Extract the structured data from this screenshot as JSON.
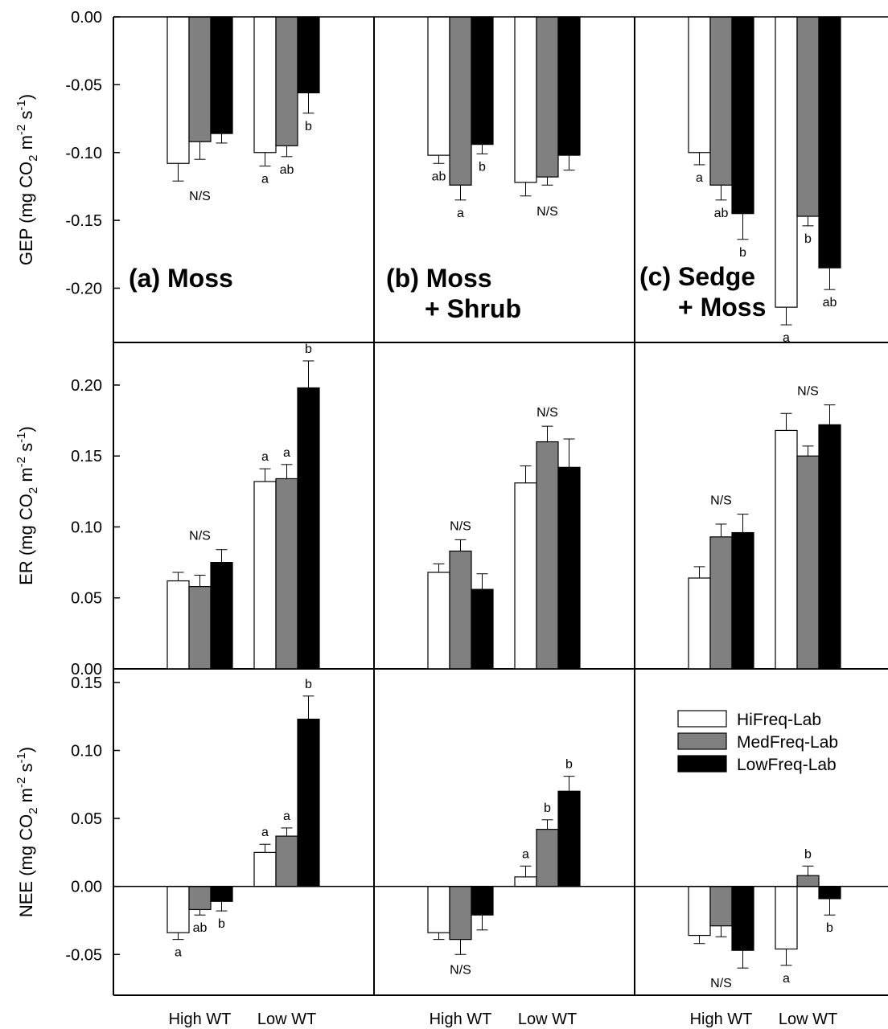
{
  "chart_data": {
    "type": "bar",
    "categories": [
      "High WT",
      "Low WT"
    ],
    "series_names": [
      "HiFreq-Lab",
      "MedFreq-Lab",
      "LowFreq-Lab"
    ],
    "colors": {
      "HiFreq-Lab": "#ffffff",
      "MedFreq-Lab": "#808080",
      "LowFreq-Lab": "#000000"
    },
    "panel_titles": [
      "(a) Moss",
      "(b) Moss\n+ Shrub",
      "(c) Sedge\n+ Moss"
    ],
    "rows": [
      {
        "metric": "GEP",
        "ylabel": "GEP (mg CO2 m-2 s-1)",
        "ylim": [
          -0.24,
          0.0
        ],
        "ticks": [
          0.0,
          -0.05,
          -0.1,
          -0.15,
          -0.2
        ],
        "tick_labels": [
          "0.00",
          "-0.05",
          "-0.10",
          "-0.15",
          "-0.20"
        ],
        "panels": [
          {
            "values": [
              [
                -0.108,
                -0.092,
                -0.086
              ],
              [
                -0.1,
                -0.095,
                -0.056
              ]
            ],
            "errors": [
              [
                0.013,
                0.013,
                0.007
              ],
              [
                0.01,
                0.008,
                0.015
              ]
            ],
            "annotations": [
              [
                "N/S"
              ],
              [
                "a",
                "ab",
                "b"
              ]
            ]
          },
          {
            "values": [
              [
                -0.102,
                -0.124,
                -0.094
              ],
              [
                -0.122,
                -0.118,
                -0.102
              ]
            ],
            "errors": [
              [
                0.006,
                0.011,
                0.007
              ],
              [
                0.01,
                0.006,
                0.011
              ]
            ],
            "annotations": [
              [
                "ab",
                "a",
                "b"
              ],
              [
                "N/S"
              ]
            ]
          },
          {
            "values": [
              [
                -0.1,
                -0.124,
                -0.145
              ],
              [
                -0.214,
                -0.147,
                -0.185
              ]
            ],
            "errors": [
              [
                0.009,
                0.011,
                0.019
              ],
              [
                0.013,
                0.007,
                0.016
              ]
            ],
            "annotations": [
              [
                "a",
                "ab",
                "b"
              ],
              [
                "a",
                "b",
                "ab"
              ]
            ]
          }
        ]
      },
      {
        "metric": "ER",
        "ylabel": "ER (mg CO2 m-2 s-1)",
        "ylim": [
          0.0,
          0.23
        ],
        "ticks": [
          0.0,
          0.05,
          0.1,
          0.15,
          0.2
        ],
        "tick_labels": [
          "0.00",
          "0.05",
          "0.10",
          "0.15",
          "0.20"
        ],
        "panels": [
          {
            "values": [
              [
                0.062,
                0.058,
                0.075
              ],
              [
                0.132,
                0.134,
                0.198
              ]
            ],
            "errors": [
              [
                0.006,
                0.008,
                0.009
              ],
              [
                0.009,
                0.01,
                0.019
              ]
            ],
            "annotations": [
              [
                "N/S"
              ],
              [
                "a",
                "a",
                "b"
              ]
            ]
          },
          {
            "values": [
              [
                0.068,
                0.083,
                0.056
              ],
              [
                0.131,
                0.16,
                0.142
              ]
            ],
            "errors": [
              [
                0.006,
                0.008,
                0.011
              ],
              [
                0.012,
                0.011,
                0.02
              ]
            ],
            "annotations": [
              [
                "N/S"
              ],
              [
                "N/S"
              ]
            ]
          },
          {
            "values": [
              [
                0.064,
                0.093,
                0.096
              ],
              [
                0.168,
                0.15,
                0.172
              ]
            ],
            "errors": [
              [
                0.008,
                0.009,
                0.013
              ],
              [
                0.012,
                0.007,
                0.014
              ]
            ],
            "annotations": [
              [
                "N/S"
              ],
              [
                "N/S"
              ]
            ]
          }
        ]
      },
      {
        "metric": "NEE",
        "ylabel": "NEE (mg CO2 m-2 s-1)",
        "ylim": [
          -0.08,
          0.16
        ],
        "ticks": [
          -0.05,
          0.0,
          0.05,
          0.1,
          0.15
        ],
        "tick_labels": [
          "-0.05",
          "0.00",
          "0.05",
          "0.10",
          "0.15"
        ],
        "panels": [
          {
            "values": [
              [
                -0.034,
                -0.017,
                -0.011
              ],
              [
                0.025,
                0.037,
                0.123
              ]
            ],
            "errors": [
              [
                0.005,
                0.004,
                0.007
              ],
              [
                0.006,
                0.006,
                0.017
              ]
            ],
            "annotations": [
              [
                "a",
                "ab",
                "b"
              ],
              [
                "a",
                "a",
                "b"
              ]
            ]
          },
          {
            "values": [
              [
                -0.034,
                -0.039,
                -0.021
              ],
              [
                0.007,
                0.042,
                0.07
              ]
            ],
            "errors": [
              [
                0.005,
                0.011,
                0.011
              ],
              [
                0.008,
                0.007,
                0.011
              ]
            ],
            "annotations": [
              [
                "N/S"
              ],
              [
                "a",
                "b",
                "b"
              ]
            ]
          },
          {
            "values": [
              [
                -0.036,
                -0.029,
                -0.047
              ],
              [
                -0.046,
                0.008,
                -0.009
              ]
            ],
            "errors": [
              [
                0.006,
                0.008,
                0.013
              ],
              [
                0.012,
                0.007,
                0.012
              ]
            ],
            "annotations": [
              [
                "N/S"
              ],
              [
                "a",
                "b",
                "b"
              ]
            ]
          }
        ]
      }
    ],
    "legend_position": "right, bottom-right panel"
  }
}
